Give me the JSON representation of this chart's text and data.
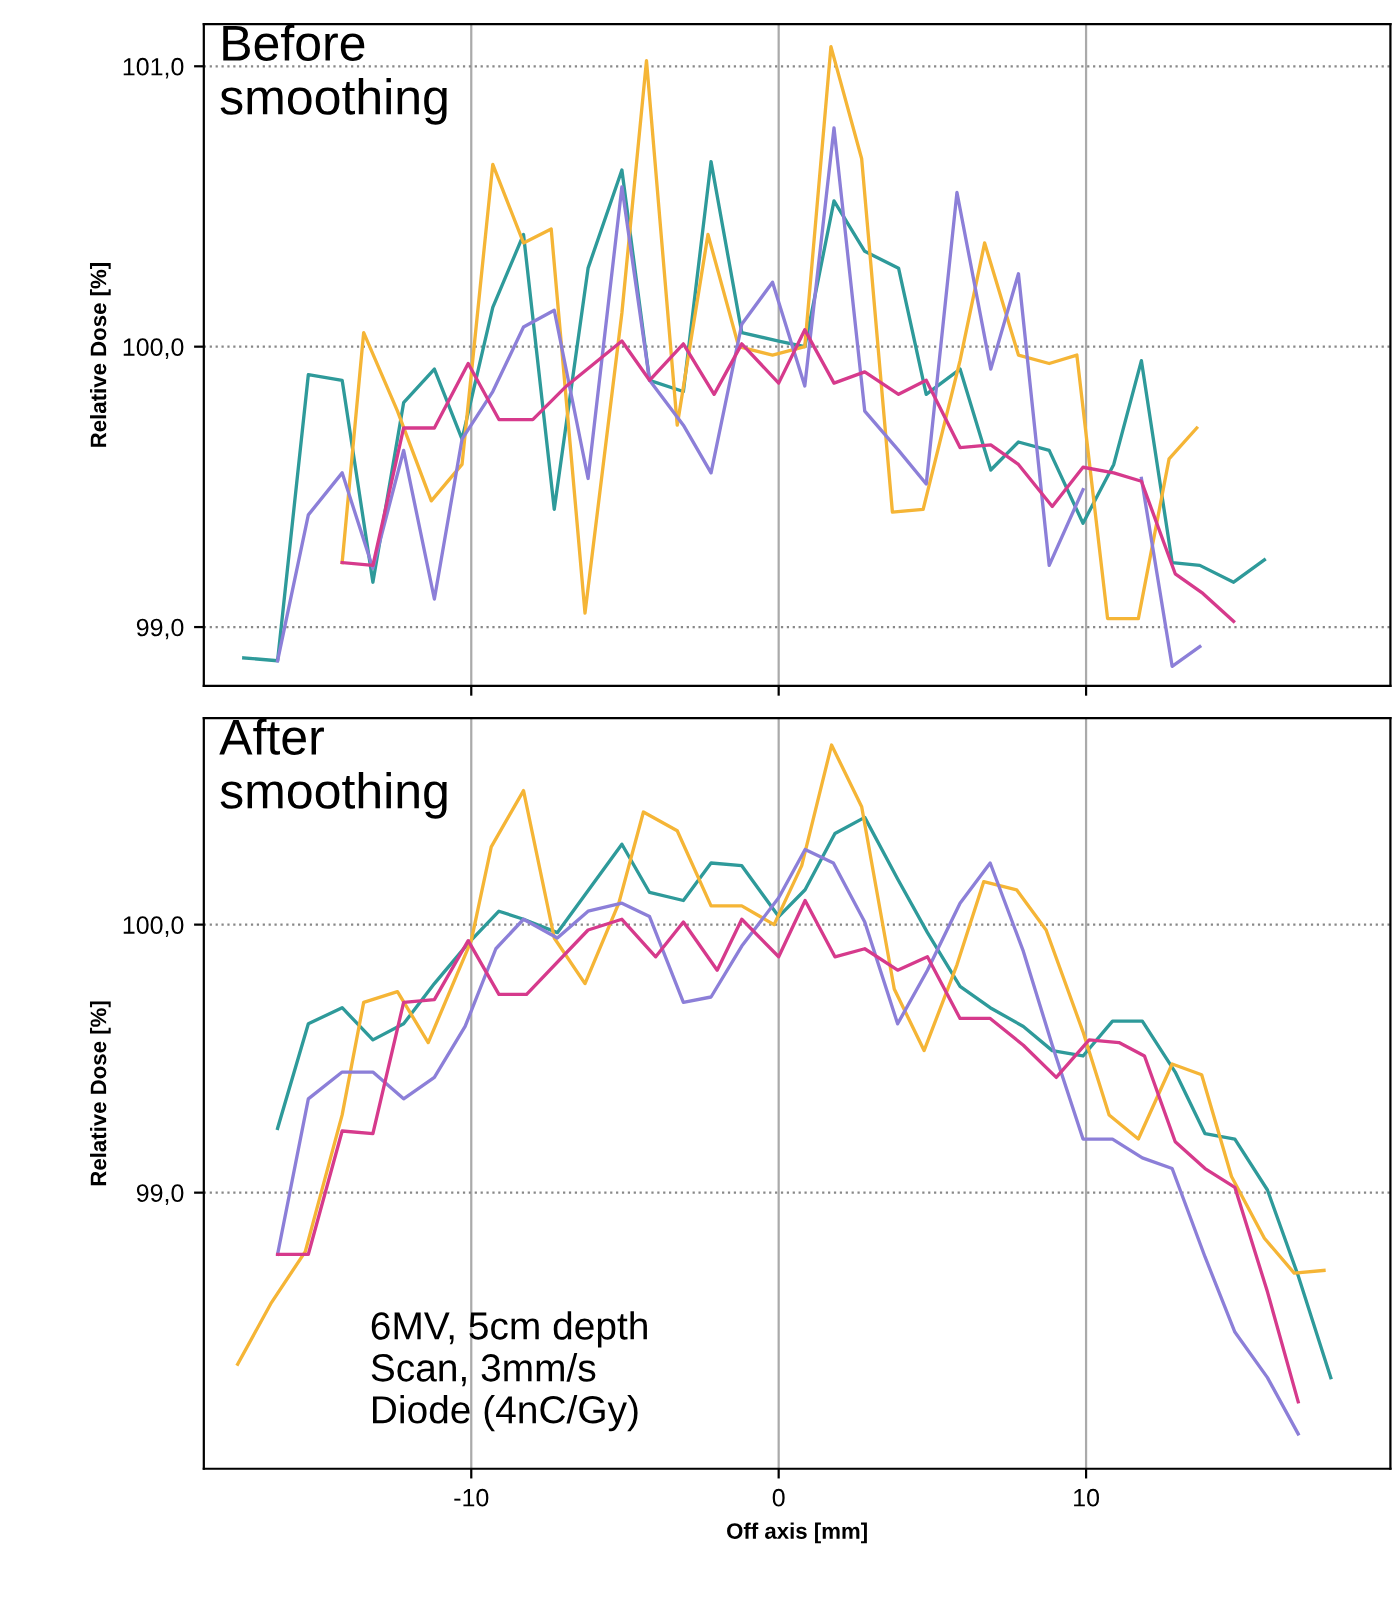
{
  "chart_data": [
    {
      "type": "line",
      "ylabel": "Relative Dose [%]",
      "annotations": [
        "Before\nsmoothing"
      ],
      "xlim": [
        -18.7,
        19.9
      ],
      "ylim": [
        98.79,
        101.15
      ],
      "xticks": [
        -10,
        0,
        10
      ],
      "yticks": [
        {
          "value": 99,
          "label": "99,0"
        },
        {
          "value": 100,
          "label": "100,0"
        },
        {
          "value": 101,
          "label": "101,0"
        }
      ],
      "tick_labels": "y",
      "grid": true,
      "line_style": "solid",
      "series": [
        {
          "color": "#2e9a9a",
          "x": [
            -17.4,
            -16.3,
            -15.3,
            -14.2,
            -13.2,
            -12.2,
            -11.2,
            -10.3,
            -9.3,
            -8.3,
            -7.3,
            -6.2,
            -5.1,
            -4.2,
            -3.1,
            -2.2,
            -1.2,
            0,
            0.85,
            1.8,
            2.8,
            3.9,
            4.8,
            5.9,
            6.9,
            7.8,
            8.8,
            9.9,
            10.9,
            11.8,
            12.8,
            13.7,
            14.8,
            15.8
          ],
          "values": [
            98.89,
            98.88,
            99.9,
            99.88,
            99.16,
            99.8,
            99.92,
            99.67,
            100.14,
            100.4,
            99.42,
            100.28,
            100.63,
            99.88,
            99.84,
            100.66,
            100.05,
            100.02,
            100.0,
            100.52,
            100.34,
            100.28,
            99.83,
            99.92,
            99.56,
            99.66,
            99.63,
            99.37,
            99.58,
            99.95,
            99.23,
            99.22,
            99.16,
            99.24
          ]
        },
        {
          "color": "#f5b536",
          "x": [
            -14.2,
            -13.5,
            -12.4,
            -11.3,
            -10.3,
            -9.3,
            -8.3,
            -7.4,
            -6.3,
            -5.1,
            -4.3,
            -3.3,
            -2.3,
            -1.3,
            -0.2,
            0.85,
            1.7,
            2.7,
            3.7,
            4.7,
            5.9,
            6.7,
            7.8,
            8.8,
            9.7,
            10.7,
            11.7,
            12.7,
            13.6
          ],
          "values": [
            99.23,
            100.05,
            99.77,
            99.45,
            99.58,
            100.65,
            100.37,
            100.42,
            99.05,
            100.12,
            101.02,
            99.72,
            100.4,
            100.0,
            99.97,
            100.0,
            101.07,
            100.67,
            99.41,
            99.42,
            99.95,
            100.37,
            99.97,
            99.94,
            99.97,
            99.03,
            99.03,
            99.6,
            99.71
          ]
        },
        {
          "color": "#8c7fd8",
          "x": [
            -16.3,
            -15.3,
            -14.2,
            -13.2,
            -12.2,
            -11.2,
            -10.3,
            -9.3,
            -8.3,
            -7.3,
            -6.2,
            -5.1,
            -4.2,
            -3.1,
            -2.2,
            -1.2,
            -0.2,
            0.85,
            1.8,
            2.8,
            3.9,
            4.8,
            5.8,
            6.9,
            7.8,
            8.8,
            9.9
          ],
          "values": [
            98.88,
            99.4,
            99.55,
            99.21,
            99.63,
            99.1,
            99.67,
            99.84,
            100.07,
            100.13,
            99.53,
            100.57,
            99.88,
            99.72,
            99.55,
            100.08,
            100.23,
            99.86,
            100.78,
            99.77,
            99.63,
            99.51,
            100.55,
            99.92,
            100.26,
            99.22,
            99.49
          ]
        },
        {
          "color": "#8c7fd8",
          "x": [
            11.8,
            12.8,
            13.7
          ],
          "values": [
            99.53,
            98.86,
            98.93
          ]
        },
        {
          "color": "#d63a8c",
          "x": [
            -14.2,
            -13.2,
            -12.2,
            -11.2,
            -10.1,
            -9.1,
            -8.0,
            -6.9,
            -5.1,
            -4.2,
            -3.1,
            -2.1,
            -1.2,
            0,
            0.85,
            1.8,
            2.8,
            3.9,
            4.8,
            5.9,
            6.9,
            7.8,
            8.9,
            9.9,
            10.9,
            11.8,
            12.9,
            13.8,
            14.8
          ],
          "values": [
            99.23,
            99.22,
            99.71,
            99.71,
            99.94,
            99.74,
            99.74,
            99.86,
            100.02,
            99.88,
            100.01,
            99.83,
            100.01,
            99.87,
            100.06,
            99.87,
            99.91,
            99.83,
            99.88,
            99.64,
            99.65,
            99.58,
            99.43,
            99.57,
            99.55,
            99.52,
            99.19,
            99.12,
            99.02
          ]
        }
      ]
    },
    {
      "type": "line",
      "xlabel": "Off axis [mm]",
      "ylabel": "Relative Dose [%]",
      "annotations": [
        "After\nsmoothing",
        "6MV, 5cm depth\nScan, 3mm/s\nDiode (4nC/Gy)"
      ],
      "xlim": [
        -18.7,
        19.9
      ],
      "ylim": [
        97.97,
        100.77
      ],
      "xticks": [
        -10,
        0,
        10
      ],
      "yticks": [
        {
          "value": 99,
          "label": "99,0"
        },
        {
          "value": 100,
          "label": "100,0"
        }
      ],
      "grid": true,
      "line_style": "solid",
      "series": [
        {
          "color": "#2e9a9a",
          "x": [
            -16.3,
            -15.3,
            -14.2,
            -13.2,
            -12.2,
            -11.2,
            -10.1,
            -9.1,
            -8.3,
            -7.2,
            -5.1,
            -4.2,
            -3.1,
            -2.2,
            -1.2,
            0,
            0.86,
            1.83,
            2.8,
            3.87,
            4.84,
            5.9,
            6.88,
            7.96,
            8.9,
            9.9,
            10.86,
            11.83,
            12.9,
            13.87,
            14.84,
            15.9,
            16.9,
            17.96
          ],
          "values": [
            99.24,
            99.63,
            99.69,
            99.57,
            99.63,
            99.78,
            99.93,
            100.05,
            100.02,
            99.97,
            100.3,
            100.12,
            100.09,
            100.23,
            100.22,
            100.03,
            100.13,
            100.34,
            100.4,
            100.17,
            99.97,
            99.77,
            99.69,
            99.62,
            99.53,
            99.51,
            99.64,
            99.64,
            99.45,
            99.22,
            99.2,
            99.01,
            98.69,
            98.31
          ]
        },
        {
          "color": "#f5b536",
          "x": [
            -17.6,
            -16.5,
            -15.4,
            -14.2,
            -13.5,
            -12.4,
            -11.4,
            -10.0,
            -9.35,
            -8.3,
            -7.3,
            -6.3,
            -5.2,
            -4.4,
            -3.3,
            -2.2,
            -1.2,
            -0.15,
            0.75,
            1.72,
            2.7,
            3.76,
            4.73,
            5.8,
            6.67,
            7.74,
            8.7,
            9.9,
            10.75,
            11.7,
            12.8,
            13.76,
            14.73,
            15.8,
            16.77,
            17.74
          ],
          "values": [
            98.36,
            98.59,
            98.78,
            99.29,
            99.71,
            99.75,
            99.56,
            99.94,
            100.29,
            100.5,
            99.95,
            99.78,
            100.08,
            100.42,
            100.35,
            100.07,
            100.07,
            100.0,
            100.22,
            100.67,
            100.44,
            99.76,
            99.53,
            99.85,
            100.16,
            100.13,
            99.98,
            99.6,
            99.29,
            99.2,
            99.48,
            99.44,
            99.06,
            98.83,
            98.7,
            98.71
          ]
        },
        {
          "color": "#8c7fd8",
          "x": [
            -16.3,
            -15.3,
            -14.2,
            -13.2,
            -12.2,
            -11.2,
            -10.2,
            -9.2,
            -8.3,
            -7.2,
            -6.2,
            -5.1,
            -4.2,
            -3.1,
            -2.2,
            -1.2,
            0,
            0.86,
            1.78,
            2.8,
            3.87,
            4.84,
            5.9,
            6.88,
            7.96,
            8.9,
            9.9,
            10.86,
            11.83,
            12.8,
            13.87,
            14.84,
            15.9,
            16.9
          ],
          "values": [
            98.77,
            99.35,
            99.45,
            99.45,
            99.35,
            99.43,
            99.62,
            99.91,
            100.02,
            99.95,
            100.05,
            100.08,
            100.03,
            99.71,
            99.73,
            99.92,
            100.1,
            100.28,
            100.23,
            100.01,
            99.63,
            99.83,
            100.08,
            100.23,
            99.9,
            99.55,
            99.2,
            99.2,
            99.13,
            99.09,
            98.76,
            98.48,
            98.31,
            98.1
          ]
        },
        {
          "color": "#d63a8c",
          "x": [
            -16.3,
            -15.3,
            -14.2,
            -13.2,
            -12.2,
            -11.2,
            -10.1,
            -9.1,
            -8.2,
            -6.2,
            -5.1,
            -4.0,
            -3.1,
            -2.0,
            -1.2,
            0,
            0.86,
            1.83,
            2.8,
            3.87,
            4.84,
            5.9,
            6.88,
            7.96,
            9.03,
            10.1,
            11.07,
            11.9,
            12.9,
            13.87,
            14.84,
            15.9,
            16.9
          ],
          "values": [
            98.77,
            98.77,
            99.23,
            99.22,
            99.71,
            99.72,
            99.94,
            99.74,
            99.74,
            99.98,
            100.02,
            99.88,
            100.01,
            99.83,
            100.02,
            99.88,
            100.09,
            99.88,
            99.91,
            99.83,
            99.88,
            99.65,
            99.65,
            99.55,
            99.43,
            99.57,
            99.56,
            99.51,
            99.19,
            99.09,
            99.02,
            98.63,
            98.22
          ]
        }
      ]
    }
  ]
}
